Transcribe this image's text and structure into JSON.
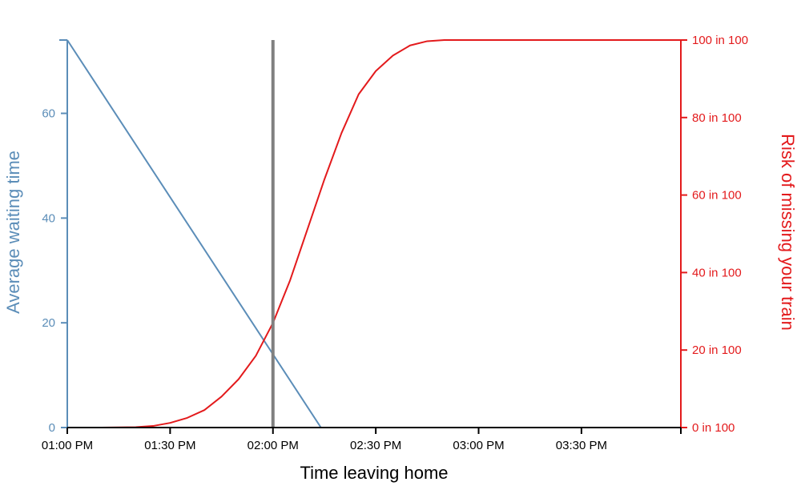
{
  "colors": {
    "waiting": "#5b8db8",
    "risk": "#e31a1c",
    "marker": "#808080",
    "axis": "#000000"
  },
  "chart_data": {
    "type": "line",
    "xlabel": "Time leaving home",
    "ylabel_left": "Average waiting time",
    "ylabel_right": "Risk of missing your train",
    "x_unit": "minutes after 01:00 PM",
    "xlim": [
      0,
      179
    ],
    "x_ticks": [
      {
        "value": 0,
        "label": "01:00 PM"
      },
      {
        "value": 30,
        "label": "01:30 PM"
      },
      {
        "value": 60,
        "label": "02:00 PM"
      },
      {
        "value": 90,
        "label": "02:30 PM"
      },
      {
        "value": 120,
        "label": "03:00 PM"
      },
      {
        "value": 150,
        "label": "03:30 PM"
      }
    ],
    "y_left_lim": [
      0,
      74
    ],
    "y_left_ticks": [
      {
        "value": 0,
        "label": "0"
      },
      {
        "value": 20,
        "label": "20"
      },
      {
        "value": 40,
        "label": "40"
      },
      {
        "value": 60,
        "label": "60"
      }
    ],
    "y_right_lim": [
      0,
      100
    ],
    "y_right_ticks": [
      {
        "value": 0,
        "label": "0 in 100"
      },
      {
        "value": 20,
        "label": "20 in 100"
      },
      {
        "value": 40,
        "label": "40 in 100"
      },
      {
        "value": 60,
        "label": "60 in 100"
      },
      {
        "value": 80,
        "label": "80 in 100"
      },
      {
        "value": 100,
        "label": "100 in 100"
      }
    ],
    "marker_x": 60,
    "series": [
      {
        "axis": "left",
        "x": [
          0,
          74,
          179
        ],
        "y": [
          74,
          0,
          0
        ]
      },
      {
        "axis": "right",
        "x": [
          0,
          10,
          20,
          25,
          30,
          35,
          40,
          45,
          50,
          55,
          60,
          65,
          70,
          75,
          80,
          85,
          90,
          95,
          100,
          105,
          110,
          115,
          179
        ],
        "y": [
          0,
          0,
          0.1,
          0.4,
          1.2,
          2.5,
          4.5,
          8,
          12.5,
          18.5,
          27,
          38,
          51,
          64,
          76,
          86,
          92,
          96,
          98.6,
          99.7,
          100,
          100,
          100
        ]
      }
    ]
  }
}
